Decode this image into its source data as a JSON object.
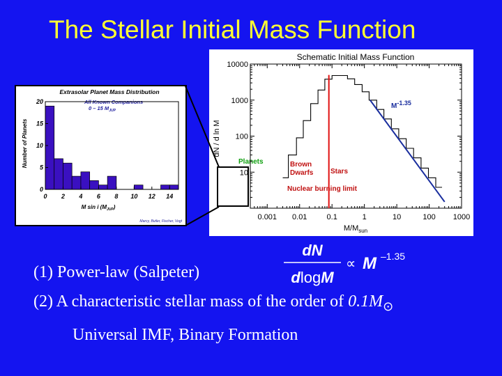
{
  "slide": {
    "title": "The Stellar Initial Mass Function",
    "line1": "(1) Power-law  (Salpeter)",
    "line2_prefix": "(2) A characteristic stellar mass of the order of ",
    "line2_value": "0.1M",
    "line2_sun": "⊙",
    "line3": "Universal IMF,  Binary Formation",
    "formula": {
      "numerator": "dN",
      "denominator_d": "d",
      "denominator_log": "log",
      "denominator_M": "M",
      "proportional": "∝",
      "M": "M",
      "exponent": "–1.35"
    }
  },
  "chart_data": [
    {
      "type": "line",
      "title": "Schematic Initial Mass Function",
      "xlabel": "M/M",
      "xlabel_sub": "sun",
      "ylabel": "dN / d ln M",
      "xscale": "log",
      "yscale": "log",
      "xlim": [
        0.0003,
        1000
      ],
      "ylim": [
        1,
        10000
      ],
      "xticks": [
        0.001,
        0.01,
        0.1,
        1,
        10,
        100,
        1000
      ],
      "xtick_labels": [
        "0.001",
        "0.01",
        "0.1",
        "1",
        "10",
        "100",
        "1000"
      ],
      "yticks": [
        10,
        100,
        1000,
        10000
      ],
      "ytick_labels": [
        "10",
        "100",
        "1000",
        "10000"
      ],
      "series": [
        {
          "style": "step",
          "x": [
            0.003,
            0.0045,
            0.0045,
            0.008,
            0.008,
            0.013,
            0.013,
            0.022,
            0.022,
            0.037,
            0.037,
            0.06,
            0.06,
            0.1,
            0.1,
            0.17,
            0.17,
            0.3,
            0.3,
            0.5,
            0.5,
            0.85,
            0.85,
            1.4,
            1.4,
            2.4,
            2.4,
            4,
            4,
            6.8,
            6.8,
            11.5,
            11.5,
            19.5,
            19.5,
            33,
            33,
            56,
            56,
            95,
            95,
            160,
            160,
            250
          ],
          "y": [
            7,
            7,
            30,
            30,
            90,
            90,
            270,
            270,
            800,
            800,
            1900,
            1900,
            3800,
            3800,
            4800,
            4800,
            4800,
            4800,
            3900,
            3900,
            2700,
            2700,
            1700,
            1700,
            1000,
            1000,
            550,
            550,
            300,
            300,
            160,
            160,
            85,
            85,
            46,
            46,
            25,
            25,
            13,
            13,
            7,
            7,
            3.8,
            3.8
          ]
        },
        {
          "name": "M",
          "name_exponent": "-1.35",
          "style": "fit",
          "x": [
            1.5,
            300
          ],
          "y": [
            1000,
            1.5
          ],
          "color": "#1a2e9e"
        }
      ],
      "vline": {
        "x": 0.08,
        "color": "#e01010",
        "label": "Nuclear burning limit"
      },
      "annotations": [
        {
          "text": "Planets",
          "color": "#10a010"
        },
        {
          "text": "Brown",
          "color": "#c01010"
        },
        {
          "text": "Dwarfs",
          "color": "#c01010"
        },
        {
          "text": "Stars",
          "color": "#c01010"
        }
      ],
      "grid": false
    },
    {
      "type": "bar",
      "title": "Extrasolar Planet Mass Distribution",
      "legend": [
        "All Known Companions",
        "0 – 15 M"
      ],
      "legend_sub": "JUP",
      "xlabel": "M sin i  (M",
      "xlabel_sub": "JUP",
      "xlabel_close": ")",
      "ylabel": "Number of Planets",
      "credit": "Marcy, Butler, Fischer, Vogt",
      "xlim": [
        0,
        15
      ],
      "ylim": [
        0,
        20
      ],
      "xticks": [
        0,
        2,
        4,
        6,
        8,
        10,
        12,
        14
      ],
      "yticks": [
        0,
        5,
        10,
        15,
        20
      ],
      "bin_edges": [
        0,
        1,
        2,
        3,
        4,
        5,
        6,
        7,
        8,
        9,
        10,
        11,
        12,
        13,
        14,
        15
      ],
      "values": [
        19,
        7,
        6,
        3,
        4,
        2,
        1,
        3,
        0,
        0,
        1,
        0,
        0,
        1,
        1
      ],
      "bar_color": "#3a10c0"
    }
  ]
}
